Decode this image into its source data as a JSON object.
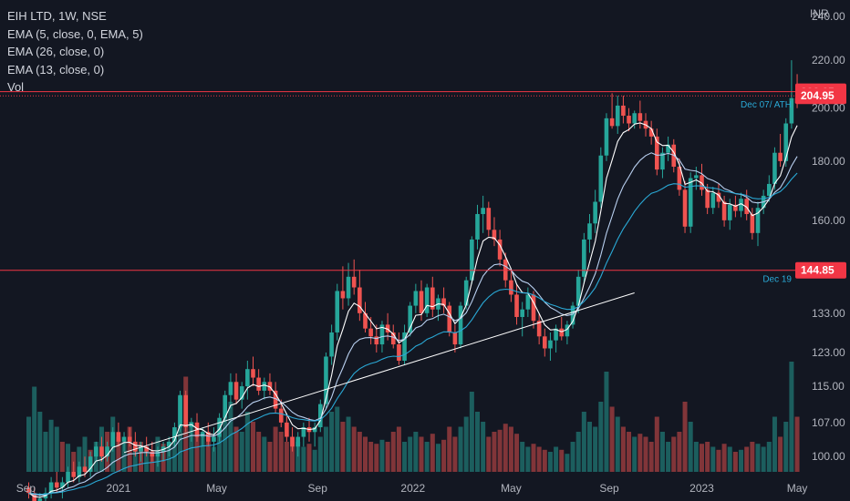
{
  "legend": {
    "symbol": "EIH LTD, 1W, NSE",
    "ema1": "EMA (5, close, 0, EMA, 5)",
    "ema2": "EMA (26, close, 0)",
    "ema3": "EMA (13, close, 0)",
    "vol": "Vol"
  },
  "currency": "INR",
  "colors": {
    "background": "#131722",
    "up": "#26a69a",
    "down": "#ef5350",
    "ema5": "#ffffff",
    "ema13": "#b9d0f0",
    "ema26": "#2aa9d6",
    "hline": "#f23645",
    "trendline": "#ffffff",
    "annotation": "#2aa9d6"
  },
  "chart_data": {
    "type": "candlestick",
    "y_scale": "log",
    "ylim": [
      97,
      248
    ],
    "y_ticks": [
      "100.00",
      "107.00",
      "115.00",
      "123.00",
      "133.00",
      "160.00",
      "180.00",
      "200.00",
      "220.00",
      "240.00"
    ],
    "x_ticks": [
      "Sep",
      "2021",
      "May",
      "Sep",
      "2022",
      "May",
      "Sep",
      "2023",
      "May"
    ],
    "x_tick_positions": [
      -0.5,
      16,
      33.5,
      51.5,
      68.5,
      86,
      103.5,
      120,
      137
    ],
    "horizontal_lines": [
      {
        "value": 206.65,
        "label": "206.65",
        "color": "#f23645"
      },
      {
        "value": 144.85,
        "label": "144.85",
        "color": "#f23645",
        "annotation": "Dec 19"
      }
    ],
    "price_tags": [
      {
        "value": 204.95,
        "label": "204.95",
        "color": "#f23645",
        "annotation": "Dec 07/ ATH"
      }
    ],
    "trendline": {
      "from": [
        17,
        100.8
      ],
      "to": [
        108,
        138.5
      ]
    },
    "candles": [
      [
        94,
        95,
        92,
        93
      ],
      [
        93,
        94,
        90,
        91
      ],
      [
        91,
        93,
        89,
        92
      ],
      [
        92,
        94,
        91,
        93
      ],
      [
        93,
        96,
        92,
        95
      ],
      [
        95,
        97,
        93,
        94
      ],
      [
        94,
        96,
        92,
        95
      ],
      [
        95,
        98,
        94,
        97
      ],
      [
        97,
        99,
        95,
        96
      ],
      [
        96,
        99,
        95,
        98
      ],
      [
        98,
        100,
        96,
        97
      ],
      [
        97,
        101,
        96,
        100
      ],
      [
        100,
        103,
        99,
        102
      ],
      [
        102,
        104,
        99,
        100
      ],
      [
        100,
        103,
        99,
        102
      ],
      [
        102,
        106,
        101,
        105
      ],
      [
        105,
        107,
        102,
        103
      ],
      [
        103,
        105,
        101,
        104
      ],
      [
        104,
        106,
        102,
        103
      ],
      [
        103,
        105,
        100,
        101
      ],
      [
        101,
        103,
        99,
        102
      ],
      [
        102,
        104,
        100,
        101
      ],
      [
        101,
        103,
        99,
        100
      ],
      [
        100,
        102,
        98,
        101
      ],
      [
        101,
        103,
        99,
        102
      ],
      [
        102,
        104,
        100,
        103
      ],
      [
        103,
        107,
        102,
        106
      ],
      [
        106,
        114,
        105,
        113
      ],
      [
        113,
        114,
        105,
        106
      ],
      [
        106,
        108,
        103,
        107
      ],
      [
        107,
        109,
        103,
        104
      ],
      [
        104,
        106,
        102,
        105
      ],
      [
        105,
        107,
        102,
        103
      ],
      [
        103,
        106,
        101,
        104
      ],
      [
        104,
        109,
        103,
        108
      ],
      [
        108,
        114,
        107,
        113
      ],
      [
        113,
        118,
        110,
        116
      ],
      [
        116,
        118,
        111,
        112
      ],
      [
        112,
        116,
        110,
        115
      ],
      [
        115,
        121,
        112,
        119
      ],
      [
        119,
        122,
        115,
        117
      ],
      [
        117,
        119,
        113,
        114
      ],
      [
        114,
        117,
        112,
        116
      ],
      [
        116,
        118,
        113,
        114
      ],
      [
        114,
        116,
        109,
        110
      ],
      [
        110,
        112,
        106,
        107
      ],
      [
        107,
        109,
        103,
        104
      ],
      [
        104,
        106,
        101,
        102
      ],
      [
        102,
        105,
        100,
        104
      ],
      [
        104,
        107,
        102,
        106
      ],
      [
        106,
        108,
        103,
        105
      ],
      [
        105,
        107,
        102,
        106
      ],
      [
        106,
        112,
        105,
        111
      ],
      [
        111,
        123,
        110,
        122
      ],
      [
        122,
        130,
        120,
        128
      ],
      [
        128,
        141,
        126,
        139
      ],
      [
        139,
        146,
        134,
        137
      ],
      [
        137,
        147,
        135,
        143
      ],
      [
        143,
        148,
        138,
        140
      ],
      [
        140,
        145,
        131,
        133
      ],
      [
        133,
        136,
        128,
        129
      ],
      [
        129,
        132,
        125,
        127
      ],
      [
        127,
        130,
        123,
        125
      ],
      [
        125,
        131,
        123,
        130
      ],
      [
        130,
        133,
        126,
        128
      ],
      [
        128,
        130,
        124,
        125
      ],
      [
        125,
        128,
        120,
        121
      ],
      [
        121,
        130,
        120,
        128
      ],
      [
        128,
        136,
        127,
        135
      ],
      [
        135,
        141,
        133,
        139
      ],
      [
        139,
        142,
        131,
        133
      ],
      [
        133,
        141,
        132,
        140
      ],
      [
        140,
        143,
        132,
        134
      ],
      [
        134,
        138,
        131,
        137
      ],
      [
        137,
        140,
        133,
        135
      ],
      [
        135,
        136,
        127,
        128
      ],
      [
        128,
        130,
        123,
        125
      ],
      [
        125,
        136,
        124,
        135
      ],
      [
        135,
        143,
        134,
        142
      ],
      [
        142,
        155,
        141,
        154
      ],
      [
        154,
        165,
        151,
        162
      ],
      [
        162,
        168,
        156,
        164
      ],
      [
        164,
        166,
        155,
        157
      ],
      [
        157,
        161,
        152,
        154
      ],
      [
        154,
        157,
        146,
        148
      ],
      [
        148,
        150,
        140,
        142
      ],
      [
        142,
        145,
        136,
        138
      ],
      [
        138,
        141,
        130,
        132
      ],
      [
        132,
        136,
        127,
        134
      ],
      [
        134,
        140,
        132,
        138
      ],
      [
        138,
        139,
        129,
        131
      ],
      [
        131,
        133,
        125,
        127
      ],
      [
        127,
        129,
        122,
        124
      ],
      [
        124,
        128,
        121,
        126
      ],
      [
        126,
        130,
        123,
        129
      ],
      [
        129,
        132,
        126,
        127
      ],
      [
        127,
        131,
        125,
        130
      ],
      [
        130,
        136,
        129,
        135
      ],
      [
        135,
        145,
        133,
        143
      ],
      [
        143,
        156,
        141,
        154
      ],
      [
        154,
        162,
        150,
        159
      ],
      [
        159,
        170,
        156,
        166
      ],
      [
        166,
        185,
        164,
        182
      ],
      [
        182,
        198,
        180,
        196
      ],
      [
        196,
        206,
        192,
        193
      ],
      [
        193,
        205,
        190,
        201
      ],
      [
        201,
        205,
        194,
        197
      ],
      [
        197,
        200,
        191,
        194
      ],
      [
        194,
        199,
        192,
        198
      ],
      [
        198,
        203,
        192,
        195
      ],
      [
        195,
        198,
        189,
        192
      ],
      [
        192,
        195,
        186,
        189
      ],
      [
        189,
        192,
        175,
        177
      ],
      [
        177,
        185,
        174,
        183
      ],
      [
        183,
        189,
        180,
        186
      ],
      [
        186,
        188,
        176,
        178
      ],
      [
        178,
        181,
        168,
        170
      ],
      [
        170,
        173,
        156,
        158
      ],
      [
        158,
        176,
        156,
        174
      ],
      [
        174,
        178,
        170,
        175
      ],
      [
        175,
        179,
        168,
        170
      ],
      [
        170,
        172,
        162,
        164
      ],
      [
        164,
        171,
        162,
        169
      ],
      [
        169,
        172,
        164,
        166
      ],
      [
        166,
        168,
        158,
        160
      ],
      [
        160,
        167,
        157,
        165
      ],
      [
        165,
        168,
        161,
        163
      ],
      [
        163,
        169,
        161,
        167
      ],
      [
        167,
        170,
        160,
        162
      ],
      [
        162,
        164,
        154,
        156
      ],
      [
        156,
        166,
        152,
        164
      ],
      [
        164,
        170,
        162,
        168
      ],
      [
        168,
        175,
        166,
        172
      ],
      [
        172,
        185,
        170,
        183
      ],
      [
        183,
        190,
        178,
        180
      ],
      [
        180,
        196,
        178,
        194
      ],
      [
        194,
        220,
        192,
        204
      ],
      [
        204,
        214,
        200,
        202
      ]
    ],
    "volumes": [
      [
        0.55,
        "u"
      ],
      [
        0.85,
        "u"
      ],
      [
        0.6,
        "u"
      ],
      [
        0.4,
        "u"
      ],
      [
        0.52,
        "u"
      ],
      [
        0.45,
        "u"
      ],
      [
        0.3,
        "d"
      ],
      [
        0.28,
        "u"
      ],
      [
        0.2,
        "d"
      ],
      [
        0.25,
        "u"
      ],
      [
        0.35,
        "u"
      ],
      [
        0.22,
        "d"
      ],
      [
        0.3,
        "u"
      ],
      [
        0.45,
        "u"
      ],
      [
        0.4,
        "d"
      ],
      [
        0.55,
        "u"
      ],
      [
        0.35,
        "d"
      ],
      [
        0.3,
        "u"
      ],
      [
        0.45,
        "d"
      ],
      [
        0.25,
        "u"
      ],
      [
        0.3,
        "d"
      ],
      [
        0.22,
        "u"
      ],
      [
        0.2,
        "d"
      ],
      [
        0.35,
        "u"
      ],
      [
        0.28,
        "d"
      ],
      [
        0.3,
        "u"
      ],
      [
        0.4,
        "u"
      ],
      [
        0.75,
        "u"
      ],
      [
        0.95,
        "d"
      ],
      [
        0.5,
        "u"
      ],
      [
        0.4,
        "d"
      ],
      [
        0.35,
        "u"
      ],
      [
        0.3,
        "d"
      ],
      [
        0.25,
        "u"
      ],
      [
        0.35,
        "u"
      ],
      [
        0.55,
        "u"
      ],
      [
        0.7,
        "u"
      ],
      [
        0.45,
        "d"
      ],
      [
        0.4,
        "u"
      ],
      [
        0.6,
        "u"
      ],
      [
        0.5,
        "d"
      ],
      [
        0.4,
        "d"
      ],
      [
        0.35,
        "u"
      ],
      [
        0.3,
        "d"
      ],
      [
        0.45,
        "d"
      ],
      [
        0.4,
        "d"
      ],
      [
        0.3,
        "d"
      ],
      [
        0.35,
        "d"
      ],
      [
        0.3,
        "u"
      ],
      [
        0.25,
        "u"
      ],
      [
        0.28,
        "d"
      ],
      [
        0.22,
        "u"
      ],
      [
        0.35,
        "u"
      ],
      [
        0.45,
        "u"
      ],
      [
        0.6,
        "u"
      ],
      [
        0.65,
        "u"
      ],
      [
        0.5,
        "d"
      ],
      [
        0.55,
        "u"
      ],
      [
        0.45,
        "d"
      ],
      [
        0.4,
        "d"
      ],
      [
        0.35,
        "d"
      ],
      [
        0.3,
        "d"
      ],
      [
        0.28,
        "d"
      ],
      [
        0.32,
        "u"
      ],
      [
        0.3,
        "d"
      ],
      [
        0.4,
        "d"
      ],
      [
        0.45,
        "d"
      ],
      [
        0.3,
        "u"
      ],
      [
        0.35,
        "u"
      ],
      [
        0.4,
        "u"
      ],
      [
        0.35,
        "d"
      ],
      [
        0.3,
        "u"
      ],
      [
        0.38,
        "d"
      ],
      [
        0.28,
        "u"
      ],
      [
        0.32,
        "d"
      ],
      [
        0.45,
        "d"
      ],
      [
        0.35,
        "d"
      ],
      [
        0.45,
        "u"
      ],
      [
        0.55,
        "u"
      ],
      [
        0.8,
        "u"
      ],
      [
        0.6,
        "u"
      ],
      [
        0.5,
        "u"
      ],
      [
        0.35,
        "d"
      ],
      [
        0.4,
        "d"
      ],
      [
        0.42,
        "d"
      ],
      [
        0.48,
        "d"
      ],
      [
        0.45,
        "d"
      ],
      [
        0.38,
        "d"
      ],
      [
        0.3,
        "u"
      ],
      [
        0.25,
        "u"
      ],
      [
        0.28,
        "d"
      ],
      [
        0.25,
        "d"
      ],
      [
        0.22,
        "d"
      ],
      [
        0.2,
        "u"
      ],
      [
        0.25,
        "u"
      ],
      [
        0.22,
        "d"
      ],
      [
        0.18,
        "u"
      ],
      [
        0.3,
        "u"
      ],
      [
        0.4,
        "u"
      ],
      [
        0.6,
        "u"
      ],
      [
        0.5,
        "u"
      ],
      [
        0.45,
        "u"
      ],
      [
        0.7,
        "u"
      ],
      [
        1.0,
        "u"
      ],
      [
        0.65,
        "d"
      ],
      [
        0.55,
        "u"
      ],
      [
        0.45,
        "d"
      ],
      [
        0.4,
        "d"
      ],
      [
        0.35,
        "u"
      ],
      [
        0.38,
        "d"
      ],
      [
        0.35,
        "d"
      ],
      [
        0.3,
        "d"
      ],
      [
        0.55,
        "d"
      ],
      [
        0.4,
        "u"
      ],
      [
        0.3,
        "u"
      ],
      [
        0.35,
        "d"
      ],
      [
        0.4,
        "d"
      ],
      [
        0.7,
        "d"
      ],
      [
        0.5,
        "u"
      ],
      [
        0.3,
        "u"
      ],
      [
        0.28,
        "d"
      ],
      [
        0.3,
        "d"
      ],
      [
        0.25,
        "u"
      ],
      [
        0.22,
        "d"
      ],
      [
        0.28,
        "d"
      ],
      [
        0.25,
        "u"
      ],
      [
        0.2,
        "d"
      ],
      [
        0.22,
        "u"
      ],
      [
        0.25,
        "d"
      ],
      [
        0.3,
        "d"
      ],
      [
        0.28,
        "u"
      ],
      [
        0.25,
        "u"
      ],
      [
        0.3,
        "u"
      ],
      [
        0.55,
        "u"
      ],
      [
        0.35,
        "d"
      ],
      [
        0.5,
        "u"
      ],
      [
        1.1,
        "u"
      ],
      [
        0.55,
        "d"
      ]
    ]
  }
}
